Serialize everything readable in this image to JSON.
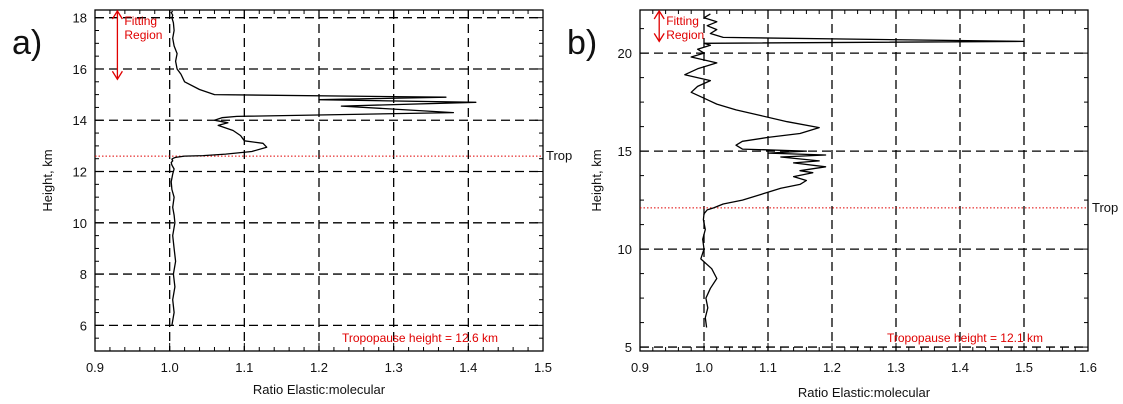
{
  "colors": {
    "profile": "#000000",
    "annotation": "#e00000",
    "grid": "#000000"
  },
  "chart_data": [
    {
      "type": "line",
      "panel_label": "a)",
      "xlabel": "Ratio Elastic:molecular",
      "ylabel": "Height, km",
      "xlim": [
        0.9,
        1.5
      ],
      "ylim": [
        5,
        18.3
      ],
      "xticks": [
        0.9,
        1.0,
        1.1,
        1.2,
        1.3,
        1.4,
        1.5
      ],
      "xtick_labels": [
        "0.9",
        "1.0",
        "1.1",
        "1.2",
        "1.3",
        "1.4",
        "1.5"
      ],
      "yticks": [
        6,
        8,
        10,
        12,
        14,
        16,
        18
      ],
      "ytick_labels": [
        "6",
        "8",
        "10",
        "12",
        "14",
        "16",
        "18"
      ],
      "grid": true,
      "profile": {
        "x": [
          1.003,
          1.006,
          1.004,
          1.007,
          1.005,
          1.008,
          1.006,
          1.004,
          1.007,
          1.006,
          1.004,
          1.006,
          1.003,
          1.002,
          1.004,
          1.006,
          1.003,
          1.002,
          1.004,
          1.003,
          1.005,
          1.008,
          1.02,
          1.045,
          1.075,
          1.11,
          1.13,
          1.125,
          1.1,
          1.095,
          1.085,
          1.065,
          1.078,
          1.06,
          1.07,
          1.09,
          1.38,
          1.23,
          1.41,
          1.2,
          1.37,
          1.06,
          1.04,
          1.02,
          1.015,
          1.01,
          1.008,
          1.01,
          1.006,
          1.004,
          1.006,
          1.005,
          1.003,
          1.004,
          1.002,
          1.004
        ],
        "y": [
          6.0,
          6.5,
          7.0,
          7.5,
          8.0,
          8.5,
          9.0,
          9.5,
          10.0,
          10.3,
          10.6,
          11.0,
          11.3,
          11.6,
          11.9,
          12.1,
          12.25,
          12.35,
          12.42,
          12.48,
          12.52,
          12.55,
          12.6,
          12.62,
          12.68,
          12.78,
          12.95,
          13.1,
          13.2,
          13.4,
          13.6,
          13.8,
          13.9,
          14.0,
          14.1,
          14.15,
          14.3,
          14.55,
          14.7,
          14.8,
          14.9,
          15.0,
          15.2,
          15.5,
          15.8,
          16.0,
          16.3,
          16.6,
          16.9,
          17.2,
          17.5,
          17.8,
          18.0,
          18.1,
          18.2,
          18.25
        ]
      },
      "tropopause": {
        "height": 12.6,
        "label": "Trop",
        "annotation": "Tropopause height = 12.6 km"
      },
      "fitting_region": {
        "label_lines": [
          "Fitting",
          "Region"
        ],
        "x": 0.93,
        "y_range": [
          15.6,
          18.3
        ]
      }
    },
    {
      "type": "line",
      "panel_label": "b)",
      "xlabel": "Ratio Elastic:molecular",
      "ylabel": "Height, km",
      "xlim": [
        0.9,
        1.6
      ],
      "ylim": [
        4.8,
        22.2
      ],
      "xticks": [
        0.9,
        1.0,
        1.1,
        1.2,
        1.3,
        1.4,
        1.5,
        1.6
      ],
      "xtick_labels": [
        "0.9",
        "1.0",
        "1.1",
        "1.2",
        "1.3",
        "1.4",
        "1.5",
        "1.6"
      ],
      "yticks": [
        5,
        10,
        15,
        20
      ],
      "ytick_labels": [
        "5",
        "10",
        "15",
        "20"
      ],
      "grid": true,
      "profile": {
        "x": [
          1.004,
          1.002,
          1.006,
          1.003,
          1.01,
          1.02,
          1.012,
          0.995,
          1.0,
          0.998,
          1.002,
          0.999,
          1.0,
          1.005,
          1.015,
          1.03,
          1.06,
          1.09,
          1.12,
          1.15,
          1.16,
          1.14,
          1.17,
          1.15,
          1.19,
          1.14,
          1.18,
          1.12,
          1.19,
          1.1,
          1.16,
          1.06,
          1.05,
          1.06,
          1.1,
          1.15,
          1.18,
          1.13,
          1.09,
          1.05,
          1.02,
          1.0,
          0.98,
          0.99,
          1.01,
          0.97,
          0.99,
          1.02,
          0.98,
          1.0,
          0.99,
          1.01,
          1.0,
          1.5,
          1.03,
          1.01,
          1.02,
          1.005,
          1.02,
          1.0,
          1.01
        ],
        "y": [
          6.0,
          6.5,
          7.0,
          7.5,
          8.0,
          8.5,
          9.0,
          9.5,
          10.0,
          10.5,
          11.0,
          11.5,
          11.8,
          12.0,
          12.1,
          12.3,
          12.5,
          12.8,
          13.1,
          13.3,
          13.5,
          13.7,
          13.9,
          14.0,
          14.2,
          14.4,
          14.5,
          14.7,
          14.8,
          14.9,
          15.0,
          15.1,
          15.3,
          15.5,
          15.7,
          15.9,
          16.2,
          16.5,
          16.8,
          17.1,
          17.4,
          17.7,
          18.0,
          18.3,
          18.6,
          18.9,
          19.2,
          19.5,
          19.8,
          20.0,
          20.2,
          20.4,
          20.5,
          20.6,
          20.8,
          21.0,
          21.2,
          21.4,
          21.6,
          21.8,
          22.0
        ]
      },
      "tropopause": {
        "height": 12.1,
        "label": "Trop",
        "annotation": "Tropopause height = 12.1 km"
      },
      "fitting_region": {
        "label_lines": [
          "Fitting",
          "Region"
        ],
        "x": 0.93,
        "y_range": [
          20.6,
          22.2
        ]
      }
    }
  ]
}
